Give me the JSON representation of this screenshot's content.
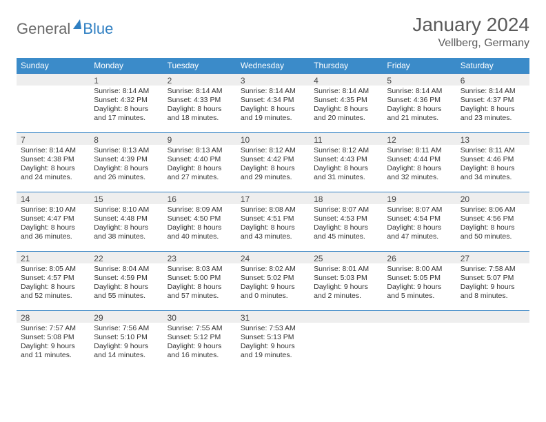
{
  "logo": {
    "text1": "General",
    "text2": "Blue"
  },
  "title": "January 2024",
  "subtitle": "Vellberg, Germany",
  "colors": {
    "header_bg": "#3b8bc9",
    "header_text": "#ffffff",
    "daynum_bg": "#eeeeee",
    "border": "#2f7fc2",
    "body_text": "#333333",
    "title_text": "#5a5a5a",
    "logo_gray": "#6b6b6b",
    "logo_blue": "#2f7fc2"
  },
  "day_headers": [
    "Sunday",
    "Monday",
    "Tuesday",
    "Wednesday",
    "Thursday",
    "Friday",
    "Saturday"
  ],
  "weeks": [
    [
      {
        "n": "",
        "sr": "",
        "ss": "",
        "dl1": "",
        "dl2": ""
      },
      {
        "n": "1",
        "sr": "Sunrise: 8:14 AM",
        "ss": "Sunset: 4:32 PM",
        "dl1": "Daylight: 8 hours",
        "dl2": "and 17 minutes."
      },
      {
        "n": "2",
        "sr": "Sunrise: 8:14 AM",
        "ss": "Sunset: 4:33 PM",
        "dl1": "Daylight: 8 hours",
        "dl2": "and 18 minutes."
      },
      {
        "n": "3",
        "sr": "Sunrise: 8:14 AM",
        "ss": "Sunset: 4:34 PM",
        "dl1": "Daylight: 8 hours",
        "dl2": "and 19 minutes."
      },
      {
        "n": "4",
        "sr": "Sunrise: 8:14 AM",
        "ss": "Sunset: 4:35 PM",
        "dl1": "Daylight: 8 hours",
        "dl2": "and 20 minutes."
      },
      {
        "n": "5",
        "sr": "Sunrise: 8:14 AM",
        "ss": "Sunset: 4:36 PM",
        "dl1": "Daylight: 8 hours",
        "dl2": "and 21 minutes."
      },
      {
        "n": "6",
        "sr": "Sunrise: 8:14 AM",
        "ss": "Sunset: 4:37 PM",
        "dl1": "Daylight: 8 hours",
        "dl2": "and 23 minutes."
      }
    ],
    [
      {
        "n": "7",
        "sr": "Sunrise: 8:14 AM",
        "ss": "Sunset: 4:38 PM",
        "dl1": "Daylight: 8 hours",
        "dl2": "and 24 minutes."
      },
      {
        "n": "8",
        "sr": "Sunrise: 8:13 AM",
        "ss": "Sunset: 4:39 PM",
        "dl1": "Daylight: 8 hours",
        "dl2": "and 26 minutes."
      },
      {
        "n": "9",
        "sr": "Sunrise: 8:13 AM",
        "ss": "Sunset: 4:40 PM",
        "dl1": "Daylight: 8 hours",
        "dl2": "and 27 minutes."
      },
      {
        "n": "10",
        "sr": "Sunrise: 8:12 AM",
        "ss": "Sunset: 4:42 PM",
        "dl1": "Daylight: 8 hours",
        "dl2": "and 29 minutes."
      },
      {
        "n": "11",
        "sr": "Sunrise: 8:12 AM",
        "ss": "Sunset: 4:43 PM",
        "dl1": "Daylight: 8 hours",
        "dl2": "and 31 minutes."
      },
      {
        "n": "12",
        "sr": "Sunrise: 8:11 AM",
        "ss": "Sunset: 4:44 PM",
        "dl1": "Daylight: 8 hours",
        "dl2": "and 32 minutes."
      },
      {
        "n": "13",
        "sr": "Sunrise: 8:11 AM",
        "ss": "Sunset: 4:46 PM",
        "dl1": "Daylight: 8 hours",
        "dl2": "and 34 minutes."
      }
    ],
    [
      {
        "n": "14",
        "sr": "Sunrise: 8:10 AM",
        "ss": "Sunset: 4:47 PM",
        "dl1": "Daylight: 8 hours",
        "dl2": "and 36 minutes."
      },
      {
        "n": "15",
        "sr": "Sunrise: 8:10 AM",
        "ss": "Sunset: 4:48 PM",
        "dl1": "Daylight: 8 hours",
        "dl2": "and 38 minutes."
      },
      {
        "n": "16",
        "sr": "Sunrise: 8:09 AM",
        "ss": "Sunset: 4:50 PM",
        "dl1": "Daylight: 8 hours",
        "dl2": "and 40 minutes."
      },
      {
        "n": "17",
        "sr": "Sunrise: 8:08 AM",
        "ss": "Sunset: 4:51 PM",
        "dl1": "Daylight: 8 hours",
        "dl2": "and 43 minutes."
      },
      {
        "n": "18",
        "sr": "Sunrise: 8:07 AM",
        "ss": "Sunset: 4:53 PM",
        "dl1": "Daylight: 8 hours",
        "dl2": "and 45 minutes."
      },
      {
        "n": "19",
        "sr": "Sunrise: 8:07 AM",
        "ss": "Sunset: 4:54 PM",
        "dl1": "Daylight: 8 hours",
        "dl2": "and 47 minutes."
      },
      {
        "n": "20",
        "sr": "Sunrise: 8:06 AM",
        "ss": "Sunset: 4:56 PM",
        "dl1": "Daylight: 8 hours",
        "dl2": "and 50 minutes."
      }
    ],
    [
      {
        "n": "21",
        "sr": "Sunrise: 8:05 AM",
        "ss": "Sunset: 4:57 PM",
        "dl1": "Daylight: 8 hours",
        "dl2": "and 52 minutes."
      },
      {
        "n": "22",
        "sr": "Sunrise: 8:04 AM",
        "ss": "Sunset: 4:59 PM",
        "dl1": "Daylight: 8 hours",
        "dl2": "and 55 minutes."
      },
      {
        "n": "23",
        "sr": "Sunrise: 8:03 AM",
        "ss": "Sunset: 5:00 PM",
        "dl1": "Daylight: 8 hours",
        "dl2": "and 57 minutes."
      },
      {
        "n": "24",
        "sr": "Sunrise: 8:02 AM",
        "ss": "Sunset: 5:02 PM",
        "dl1": "Daylight: 9 hours",
        "dl2": "and 0 minutes."
      },
      {
        "n": "25",
        "sr": "Sunrise: 8:01 AM",
        "ss": "Sunset: 5:03 PM",
        "dl1": "Daylight: 9 hours",
        "dl2": "and 2 minutes."
      },
      {
        "n": "26",
        "sr": "Sunrise: 8:00 AM",
        "ss": "Sunset: 5:05 PM",
        "dl1": "Daylight: 9 hours",
        "dl2": "and 5 minutes."
      },
      {
        "n": "27",
        "sr": "Sunrise: 7:58 AM",
        "ss": "Sunset: 5:07 PM",
        "dl1": "Daylight: 9 hours",
        "dl2": "and 8 minutes."
      }
    ],
    [
      {
        "n": "28",
        "sr": "Sunrise: 7:57 AM",
        "ss": "Sunset: 5:08 PM",
        "dl1": "Daylight: 9 hours",
        "dl2": "and 11 minutes."
      },
      {
        "n": "29",
        "sr": "Sunrise: 7:56 AM",
        "ss": "Sunset: 5:10 PM",
        "dl1": "Daylight: 9 hours",
        "dl2": "and 14 minutes."
      },
      {
        "n": "30",
        "sr": "Sunrise: 7:55 AM",
        "ss": "Sunset: 5:12 PM",
        "dl1": "Daylight: 9 hours",
        "dl2": "and 16 minutes."
      },
      {
        "n": "31",
        "sr": "Sunrise: 7:53 AM",
        "ss": "Sunset: 5:13 PM",
        "dl1": "Daylight: 9 hours",
        "dl2": "and 19 minutes."
      },
      {
        "n": "",
        "sr": "",
        "ss": "",
        "dl1": "",
        "dl2": ""
      },
      {
        "n": "",
        "sr": "",
        "ss": "",
        "dl1": "",
        "dl2": ""
      },
      {
        "n": "",
        "sr": "",
        "ss": "",
        "dl1": "",
        "dl2": ""
      }
    ]
  ]
}
